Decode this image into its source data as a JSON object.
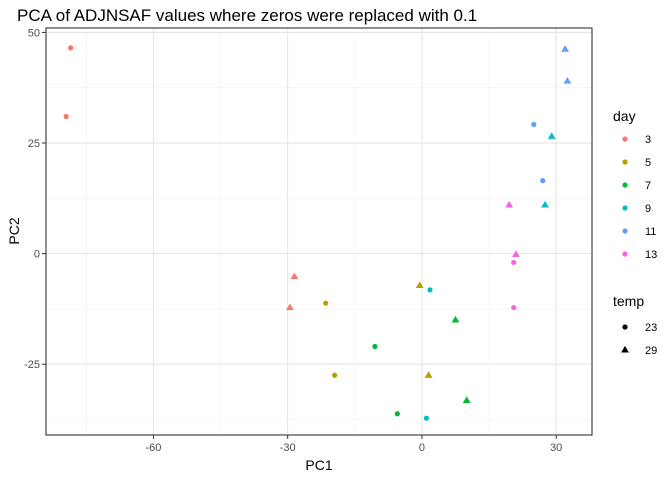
{
  "chart_data": {
    "type": "scatter",
    "title": "PCA of ADJNSAF values where zeros were replaced with 0.1",
    "xlabel": "PC1",
    "ylabel": "PC2",
    "xlim": [
      -84,
      38
    ],
    "ylim": [
      -41,
      51
    ],
    "xticks": [
      -60,
      -30,
      0,
      30
    ],
    "yticks": [
      -25,
      0,
      25,
      50
    ],
    "grid": true,
    "legend_position": "right",
    "legend": {
      "color_title": "day",
      "color_levels": [
        {
          "label": "3",
          "color": "#F8766D"
        },
        {
          "label": "5",
          "color": "#B79F00"
        },
        {
          "label": "7",
          "color": "#00BA38"
        },
        {
          "label": "9",
          "color": "#00BFC4"
        },
        {
          "label": "11",
          "color": "#619CFF"
        },
        {
          "label": "13",
          "color": "#F564E3"
        }
      ],
      "shape_title": "temp",
      "shape_levels": [
        {
          "label": "23",
          "shape": "circle"
        },
        {
          "label": "29",
          "shape": "triangle"
        }
      ]
    },
    "points": [
      {
        "x": -78.5,
        "y": 46.5,
        "day": "3",
        "temp": "23"
      },
      {
        "x": -79.5,
        "y": 31.0,
        "day": "3",
        "temp": "23"
      },
      {
        "x": -28.5,
        "y": -5.2,
        "day": "3",
        "temp": "29"
      },
      {
        "x": -29.5,
        "y": -12.2,
        "day": "3",
        "temp": "29"
      },
      {
        "x": -21.5,
        "y": -11.2,
        "day": "5",
        "temp": "23"
      },
      {
        "x": -19.5,
        "y": -27.5,
        "day": "5",
        "temp": "23"
      },
      {
        "x": -0.5,
        "y": -7.2,
        "day": "5",
        "temp": "29"
      },
      {
        "x": 1.5,
        "y": -27.5,
        "day": "5",
        "temp": "29"
      },
      {
        "x": -10.5,
        "y": -21.0,
        "day": "7",
        "temp": "23"
      },
      {
        "x": -5.5,
        "y": -36.2,
        "day": "7",
        "temp": "23"
      },
      {
        "x": 7.5,
        "y": -15.0,
        "day": "7",
        "temp": "29"
      },
      {
        "x": 10.0,
        "y": -33.2,
        "day": "7",
        "temp": "29"
      },
      {
        "x": 1.8,
        "y": -8.2,
        "day": "9",
        "temp": "23"
      },
      {
        "x": 1.0,
        "y": -37.2,
        "day": "9",
        "temp": "23"
      },
      {
        "x": 27.5,
        "y": 11.0,
        "day": "9",
        "temp": "29"
      },
      {
        "x": 29.0,
        "y": 26.5,
        "day": "9",
        "temp": "29"
      },
      {
        "x": 25.0,
        "y": 29.2,
        "day": "11",
        "temp": "23"
      },
      {
        "x": 27.0,
        "y": 16.5,
        "day": "11",
        "temp": "23"
      },
      {
        "x": 32.0,
        "y": 46.2,
        "day": "11",
        "temp": "29"
      },
      {
        "x": 32.5,
        "y": 39.0,
        "day": "11",
        "temp": "29"
      },
      {
        "x": 20.5,
        "y": -2.0,
        "day": "13",
        "temp": "23"
      },
      {
        "x": 20.5,
        "y": -12.2,
        "day": "13",
        "temp": "23"
      },
      {
        "x": 21.0,
        "y": -0.2,
        "day": "13",
        "temp": "29"
      },
      {
        "x": 19.5,
        "y": 11.0,
        "day": "13",
        "temp": "29"
      }
    ]
  }
}
